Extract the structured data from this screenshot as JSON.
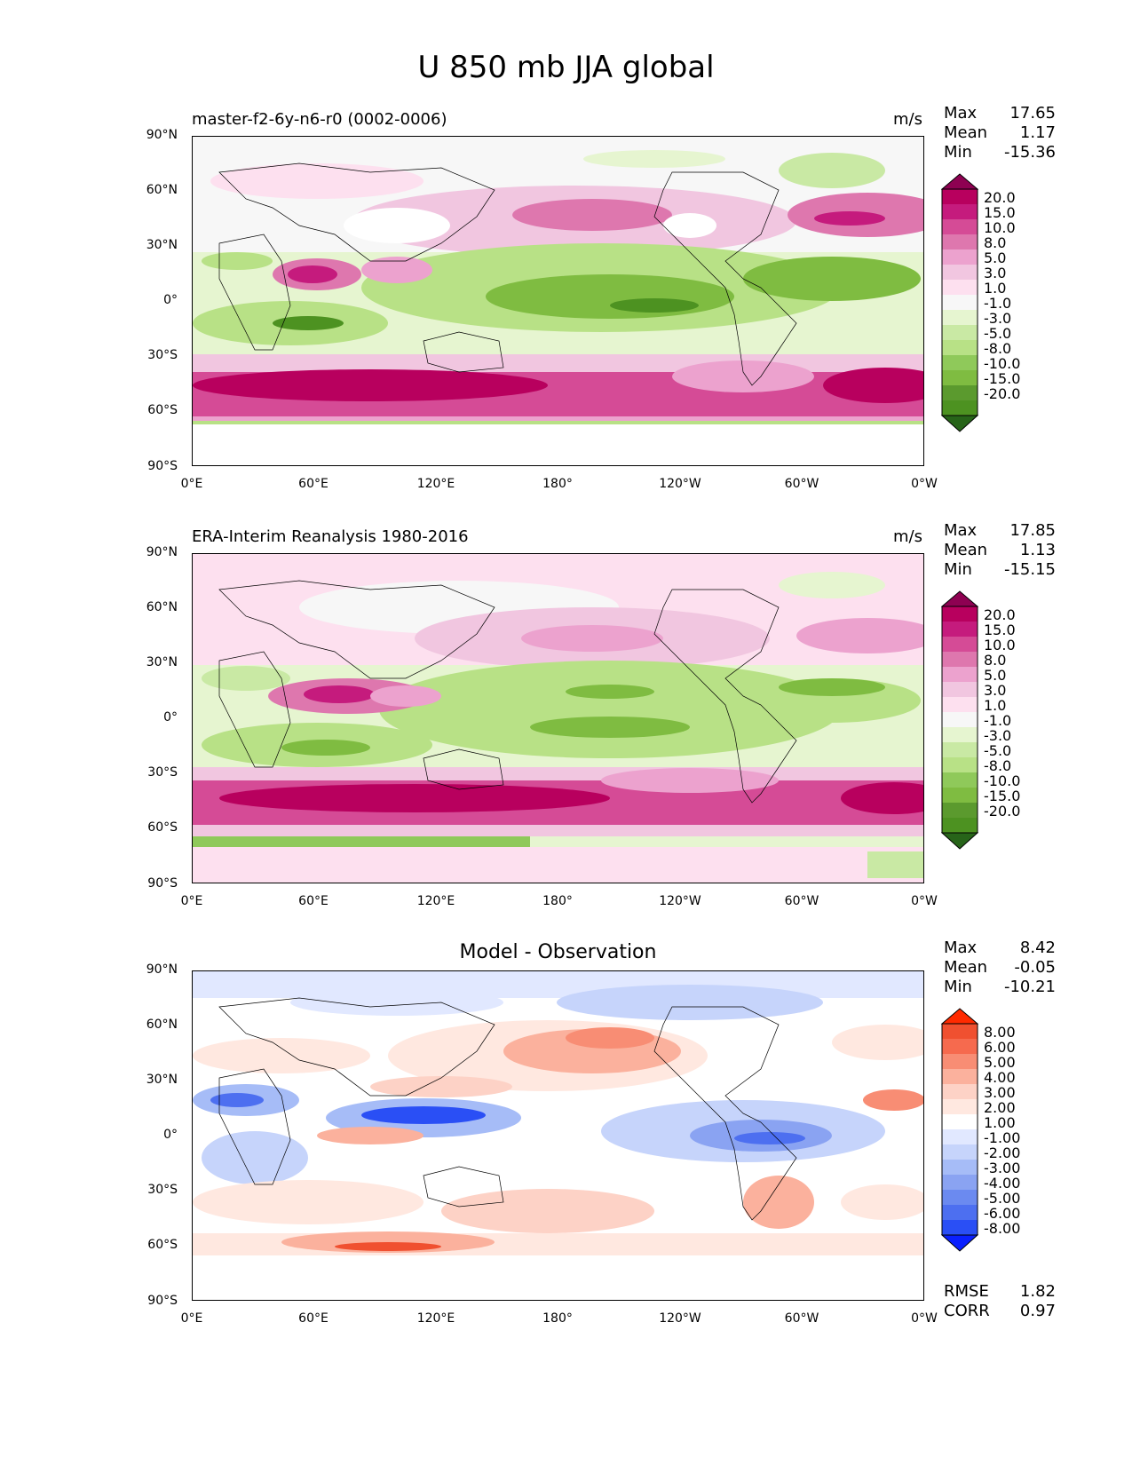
{
  "title": "U 850 mb JJA global",
  "units": "m/s",
  "y_ticks": [
    "90°N",
    "60°N",
    "30°N",
    "0°",
    "30°S",
    "60°S",
    "90°S"
  ],
  "x_ticks": [
    "0°E",
    "60°E",
    "120°E",
    "180°",
    "120°W",
    "60°W",
    "0°W"
  ],
  "panels": [
    {
      "label": "master-f2-6y-n6-r0 (0002-0006)",
      "units": "m/s",
      "stats": {
        "max_label": "Max",
        "max": "17.65",
        "mean_label": "Mean",
        "mean": "1.17",
        "min_label": "Min",
        "min": "-15.36"
      },
      "colorbar": [
        "20.0",
        "15.0",
        "10.0",
        "8.0",
        "5.0",
        "3.0",
        "1.0",
        "-1.0",
        "-3.0",
        "-5.0",
        "-8.0",
        "-10.0",
        "-15.0",
        "-20.0"
      ]
    },
    {
      "label": "ERA-Interim Reanalysis 1980-2016",
      "units": "m/s",
      "stats": {
        "max_label": "Max",
        "max": "17.85",
        "mean_label": "Mean",
        "mean": "1.13",
        "min_label": "Min",
        "min": "-15.15"
      },
      "colorbar": [
        "20.0",
        "15.0",
        "10.0",
        "8.0",
        "5.0",
        "3.0",
        "1.0",
        "-1.0",
        "-3.0",
        "-5.0",
        "-8.0",
        "-10.0",
        "-15.0",
        "-20.0"
      ]
    },
    {
      "label": "Model - Observation",
      "units": "",
      "stats": {
        "max_label": "Max",
        "max": "8.42",
        "mean_label": "Mean",
        "mean": "-0.05",
        "min_label": "Min",
        "min": "-10.21"
      },
      "colorbar": [
        "8.00",
        "6.00",
        "5.00",
        "4.00",
        "3.00",
        "2.00",
        "1.00",
        "-1.00",
        "-2.00",
        "-3.00",
        "-4.00",
        "-5.00",
        "-6.00",
        "-8.00"
      ],
      "rmse_label": "RMSE",
      "rmse": "1.82",
      "corr_label": "CORR",
      "corr": "0.97"
    }
  ],
  "colors": {
    "piyg": [
      "#8e0152",
      "#b8005e",
      "#c51b7d",
      "#d54b96",
      "#de77ae",
      "#eca2ce",
      "#f1c6e0",
      "#fde0ef",
      "#f7f7f7",
      "#e6f5d0",
      "#c9e9a4",
      "#b8e186",
      "#8fc95a",
      "#7fbc41",
      "#5b9a2e",
      "#4d9221",
      "#276419"
    ],
    "bwr": [
      "#ff2a00",
      "#f05030",
      "#f66a4e",
      "#f88d74",
      "#fbb19d",
      "#fdd2c6",
      "#ffe8e0",
      "#ffffff",
      "#e1e8ff",
      "#c6d4fb",
      "#a6bcf7",
      "#8aa3f2",
      "#6b8af0",
      "#4d6ff0",
      "#2a4ff5",
      "#0a20ff"
    ]
  },
  "chart_data": [
    {
      "type": "heatmap",
      "title": "master-f2-6y-n6-r0 (0002-0006)",
      "units": "m/s",
      "xlim": [
        0,
        360
      ],
      "ylim": [
        -90,
        90
      ],
      "levels": [
        -20,
        -15,
        -10,
        -8,
        -5,
        -3,
        -1,
        1,
        3,
        5,
        8,
        10,
        15,
        20
      ],
      "stats": {
        "max": 17.65,
        "mean": 1.17,
        "min": -15.36
      }
    },
    {
      "type": "heatmap",
      "title": "ERA-Interim Reanalysis 1980-2016",
      "units": "m/s",
      "xlim": [
        0,
        360
      ],
      "ylim": [
        -90,
        90
      ],
      "levels": [
        -20,
        -15,
        -10,
        -8,
        -5,
        -3,
        -1,
        1,
        3,
        5,
        8,
        10,
        15,
        20
      ],
      "stats": {
        "max": 17.85,
        "mean": 1.13,
        "min": -15.15
      }
    },
    {
      "type": "heatmap",
      "title": "Model - Observation",
      "xlim": [
        0,
        360
      ],
      "ylim": [
        -90,
        90
      ],
      "levels": [
        -8,
        -6,
        -5,
        -4,
        -3,
        -2,
        -1,
        1,
        2,
        3,
        4,
        5,
        6,
        8
      ],
      "stats": {
        "max": 8.42,
        "mean": -0.05,
        "min": -10.21,
        "rmse": 1.82,
        "corr": 0.97
      }
    }
  ]
}
